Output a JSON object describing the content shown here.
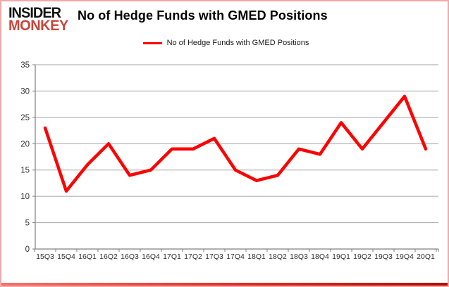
{
  "logo": {
    "line1": "INSIDER",
    "line2": "MONKEY"
  },
  "header": {
    "title": "No of Hedge Funds with GMED Positions"
  },
  "legend": {
    "label": "No of Hedge Funds with GMED Positions"
  },
  "colors": {
    "line": "#ff0000",
    "logo_red": "#c9463c",
    "grid": "#a3a3a3",
    "axis": "#7f7f7f",
    "axis_text": "#333333",
    "border_pink": "#f0a8a8",
    "border_red": "#e02b20"
  },
  "chart_data": {
    "type": "line",
    "title": "No of Hedge Funds with GMED Positions",
    "categories": [
      "15Q3",
      "15Q4",
      "16Q1",
      "16Q2",
      "16Q3",
      "16Q4",
      "17Q1",
      "17Q2",
      "17Q3",
      "17Q4",
      "18Q1",
      "18Q2",
      "18Q3",
      "18Q4",
      "19Q1",
      "19Q2",
      "19Q3",
      "19Q4",
      "20Q1"
    ],
    "values": [
      23,
      11,
      16,
      20,
      14,
      15,
      19,
      19,
      21,
      15,
      13,
      14,
      19,
      18,
      24,
      19,
      24,
      29,
      19
    ],
    "series_name": "No of Hedge Funds with GMED Positions",
    "xlabel": "",
    "ylabel": "",
    "ylim": [
      0,
      35
    ],
    "yticks": [
      0,
      5,
      10,
      15,
      20,
      25,
      30,
      35
    ],
    "grid": true,
    "legend_position": "top-center"
  }
}
